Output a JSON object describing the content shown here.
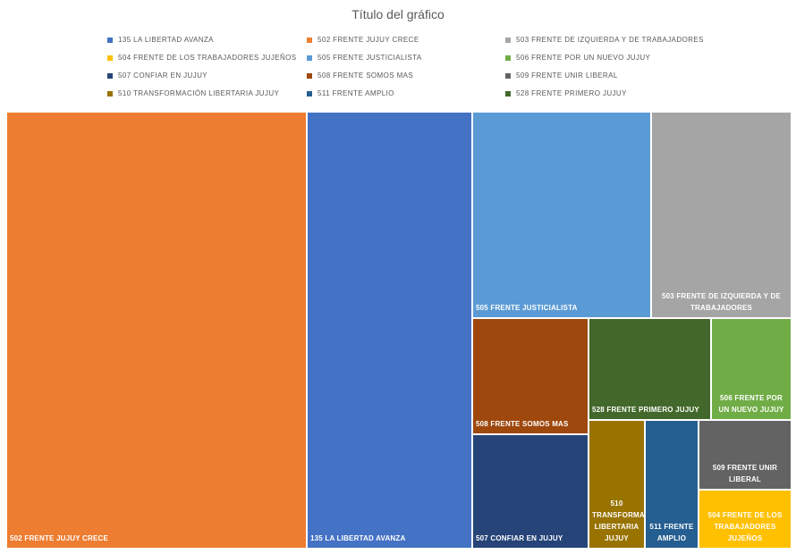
{
  "chart_data": {
    "type": "treemap",
    "title": "Título del gráfico",
    "legend_position": "top",
    "categories": [
      "135 LA LIBERTAD AVANZA",
      "502 FRENTE JUJUY CRECE",
      "503 FRENTE DE IZQUIERDA Y DE TRABAJADORES",
      "504 FRENTE DE LOS TRABAJADORES JUJEÑOS",
      "505 FRENTE JUSTICIALISTA",
      "506 FRENTE POR UN NUEVO JUJUY",
      "507 CONFIAR EN JUJUY",
      "508 FRENTE SOMOS MAS",
      "509 FRENTE UNIR LIBERAL",
      "510 TRANSFORMACIÓN LIBERTARIA JUJUY",
      "511 FRENTE AMPLIO",
      "528 FRENTE PRIMERO JUJUY"
    ],
    "values_percent_estimated": [
      20.9,
      38.1,
      8.3,
      1.5,
      10.6,
      2.3,
      3.8,
      3.8,
      1.8,
      2.0,
      1.9,
      3.5
    ],
    "colors": [
      "#4472C4",
      "#ED7D31",
      "#A5A5A5",
      "#FFC000",
      "#5B9BD5",
      "#70AD47",
      "#264478",
      "#9E480E",
      "#636363",
      "#997300",
      "#255E91",
      "#43682B"
    ]
  }
}
